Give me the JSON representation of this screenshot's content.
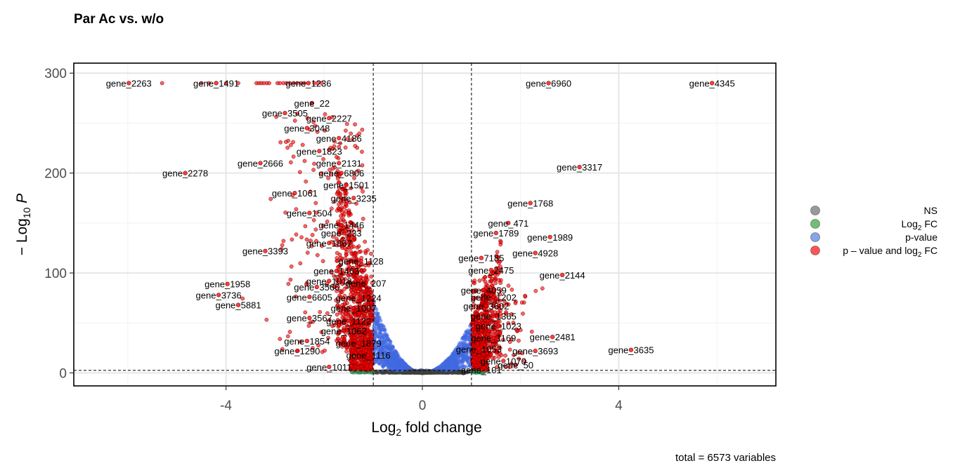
{
  "chart_data": {
    "type": "scatter",
    "title": "Par Ac vs. w/o",
    "xlabel": {
      "base": "Log",
      "sub": "2",
      "rest": " fold change"
    },
    "ylabel": {
      "pre": "− Log",
      "sub": "10",
      "italic": " P"
    },
    "caption": "total = 6573 variables",
    "xlim": [
      -7.1,
      7.2
    ],
    "ylim": [
      -13,
      310
    ],
    "xticks": [
      -4,
      0,
      4
    ],
    "xtick_labels": [
      "-4",
      "0",
      "4"
    ],
    "yticks": [
      0,
      100,
      200,
      300
    ],
    "ytick_labels": [
      "0",
      "100",
      "200",
      "300"
    ],
    "fc_cutoff": 1,
    "p_cutoff_log10": 2.5,
    "grid": true,
    "legend_position": "right",
    "legend": [
      {
        "key": "ns",
        "label": "NS",
        "color": "#808080"
      },
      {
        "key": "fc",
        "label": "Log",
        "sub": "2",
        "label_rest": " FC",
        "color": "#4caf50"
      },
      {
        "key": "p",
        "label": "p-value",
        "color": "#6a8de0"
      },
      {
        "key": "both",
        "label": "p – value and log",
        "sub": "2",
        "label_rest": " FC",
        "color": "#ff2b2b"
      }
    ],
    "colors": {
      "ns": "#404040",
      "p": "#4169e1",
      "both": "#ff0000",
      "fc": "#2e8b57"
    },
    "series": [
      {
        "name": "NS",
        "points": []
      },
      {
        "name": "Log2 FC",
        "points": [
          [
            -1.05,
            1.2
          ],
          [
            -1.3,
            1.5
          ]
        ]
      },
      {
        "name": "p-value",
        "points": []
      },
      {
        "name": "p-value and log2 FC",
        "points": []
      }
    ],
    "labeled_points": [
      {
        "label": "gene_2263",
        "x": -5.98,
        "y": 290
      },
      {
        "label": "gene_1491",
        "x": -4.2,
        "y": 290
      },
      {
        "label": "gene_1236",
        "x": -2.32,
        "y": 290
      },
      {
        "label": "gene_22",
        "x": -2.25,
        "y": 270
      },
      {
        "label": "gene_3505",
        "x": -2.8,
        "y": 260
      },
      {
        "label": "gene_2227",
        "x": -1.9,
        "y": 255
      },
      {
        "label": "gene_3048",
        "x": -2.35,
        "y": 245
      },
      {
        "label": "gene_4186",
        "x": -1.7,
        "y": 235
      },
      {
        "label": "gene_1823",
        "x": -2.1,
        "y": 222
      },
      {
        "label": "gene_2131",
        "x": -1.7,
        "y": 210
      },
      {
        "label": "gene_2666",
        "x": -3.3,
        "y": 210
      },
      {
        "label": "gene_6806",
        "x": -1.65,
        "y": 200
      },
      {
        "label": "gene_2278",
        "x": -4.83,
        "y": 200
      },
      {
        "label": "gene_1501",
        "x": -1.55,
        "y": 188
      },
      {
        "label": "gene_1061",
        "x": -2.6,
        "y": 180
      },
      {
        "label": "gene_3235",
        "x": -1.4,
        "y": 175
      },
      {
        "label": "gene_1504",
        "x": -2.3,
        "y": 160
      },
      {
        "label": "gene_1446",
        "x": -1.65,
        "y": 148
      },
      {
        "label": "gene_233",
        "x": -1.65,
        "y": 140
      },
      {
        "label": "gene_1867",
        "x": -1.9,
        "y": 130
      },
      {
        "label": "gene_3393",
        "x": -3.2,
        "y": 122
      },
      {
        "label": "gene_1128",
        "x": -1.25,
        "y": 112
      },
      {
        "label": "gene_1463",
        "x": -1.75,
        "y": 102
      },
      {
        "label": "gene_1018",
        "x": -1.9,
        "y": 92
      },
      {
        "label": "gene_207",
        "x": -1.15,
        "y": 90
      },
      {
        "label": "gene_1958",
        "x": -3.97,
        "y": 89
      },
      {
        "label": "gene_3566",
        "x": -2.15,
        "y": 86
      },
      {
        "label": "gene_3736",
        "x": -4.15,
        "y": 78
      },
      {
        "label": "gene_6605",
        "x": -2.3,
        "y": 76
      },
      {
        "label": "gene_1224",
        "x": -1.3,
        "y": 75
      },
      {
        "label": "gene_5881",
        "x": -3.75,
        "y": 68
      },
      {
        "label": "gene_1007",
        "x": -1.4,
        "y": 65
      },
      {
        "label": "gene_3567",
        "x": -2.3,
        "y": 55
      },
      {
        "label": "gene_1122",
        "x": -1.5,
        "y": 52
      },
      {
        "label": "gene_1062",
        "x": -1.6,
        "y": 42
      },
      {
        "label": "gene_1854",
        "x": -2.35,
        "y": 32
      },
      {
        "label": "gene_1879",
        "x": -1.3,
        "y": 30
      },
      {
        "label": "gene_1290",
        "x": -2.55,
        "y": 22
      },
      {
        "label": "gene_1116",
        "x": -1.1,
        "y": 18
      },
      {
        "label": "gene_1011",
        "x": -1.9,
        "y": 6
      },
      {
        "label": "gene_6960",
        "x": 2.57,
        "y": 290
      },
      {
        "label": "gene_4345",
        "x": 5.9,
        "y": 290
      },
      {
        "label": "gene_3317",
        "x": 3.2,
        "y": 206
      },
      {
        "label": "gene_1768",
        "x": 2.2,
        "y": 170
      },
      {
        "label": "gene_471",
        "x": 1.75,
        "y": 150
      },
      {
        "label": "gene_1789",
        "x": 1.5,
        "y": 140
      },
      {
        "label": "gene_1989",
        "x": 2.6,
        "y": 136
      },
      {
        "label": "gene_4928",
        "x": 2.3,
        "y": 120
      },
      {
        "label": "gene_7185",
        "x": 1.2,
        "y": 115
      },
      {
        "label": "gene_2475",
        "x": 1.4,
        "y": 103
      },
      {
        "label": "gene_2144",
        "x": 2.85,
        "y": 98
      },
      {
        "label": "gene_4059",
        "x": 1.25,
        "y": 83
      },
      {
        "label": "gene_1202",
        "x": 1.45,
        "y": 76
      },
      {
        "label": "gene_3602",
        "x": 1.3,
        "y": 67
      },
      {
        "label": "gene_1365",
        "x": 1.45,
        "y": 57
      },
      {
        "label": "gene_1023",
        "x": 1.55,
        "y": 47
      },
      {
        "label": "gene_1169",
        "x": 1.45,
        "y": 35
      },
      {
        "label": "gene_2481",
        "x": 2.65,
        "y": 36
      },
      {
        "label": "gene_1053",
        "x": 1.15,
        "y": 24
      },
      {
        "label": "gene_3693",
        "x": 2.3,
        "y": 22
      },
      {
        "label": "gene_3635",
        "x": 4.25,
        "y": 23
      },
      {
        "label": "gene_1070",
        "x": 1.65,
        "y": 12
      },
      {
        "label": "gene_50",
        "x": 1.9,
        "y": 8
      },
      {
        "label": "gene_101",
        "x": 1.2,
        "y": 3
      }
    ]
  }
}
